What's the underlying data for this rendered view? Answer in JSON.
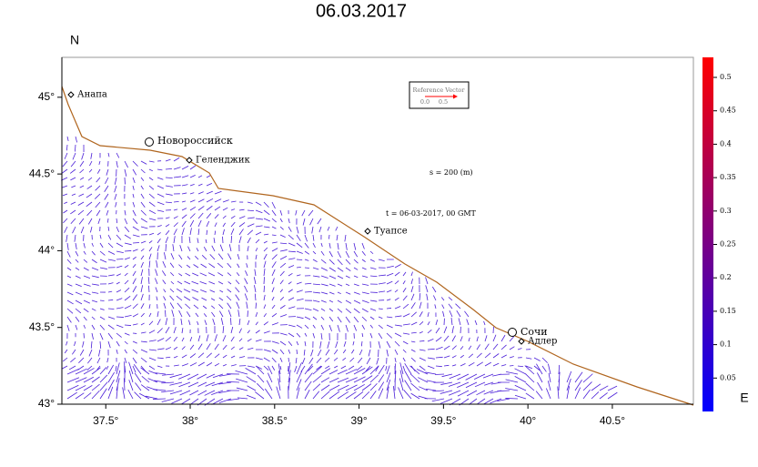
{
  "title": "06.03.2017",
  "axes": {
    "north_label": "N",
    "east_label": "E",
    "xlim": [
      37.24,
      40.98
    ],
    "ylim": [
      43,
      45.26
    ],
    "xticks": [
      {
        "value": 37.5,
        "label": "37.5°"
      },
      {
        "value": 38,
        "label": "38°"
      },
      {
        "value": 38.5,
        "label": "38.5°"
      },
      {
        "value": 39,
        "label": "39°"
      },
      {
        "value": 39.5,
        "label": "39.5°"
      },
      {
        "value": 40,
        "label": "40°"
      },
      {
        "value": 40.5,
        "label": "40.5°"
      }
    ],
    "yticks": [
      {
        "value": 43,
        "label": "43°"
      },
      {
        "value": 43.5,
        "label": "43.5°"
      },
      {
        "value": 44,
        "label": "44°"
      },
      {
        "value": 44.5,
        "label": "44.5°"
      },
      {
        "value": 45,
        "label": "45°"
      }
    ]
  },
  "colorbar": {
    "clim": [
      0,
      0.53
    ],
    "colors": [
      "#0000ff",
      "#ff0000"
    ],
    "ticks": [
      0.05,
      0.1,
      0.15,
      0.2,
      0.25,
      0.3,
      0.35,
      0.4,
      0.45,
      0.5
    ]
  },
  "cities": [
    "Анапа",
    "Новороссийск",
    "Геленджик",
    "Туапсе",
    "Сочи",
    "Адлер"
  ],
  "annotations": {
    "depth": "s = 200 (m)",
    "time": "t = 06-03-2017, 00 GMT"
  },
  "reference_vector": {
    "title": "Reference Vector",
    "low": "0.0",
    "high": "0.5"
  }
}
